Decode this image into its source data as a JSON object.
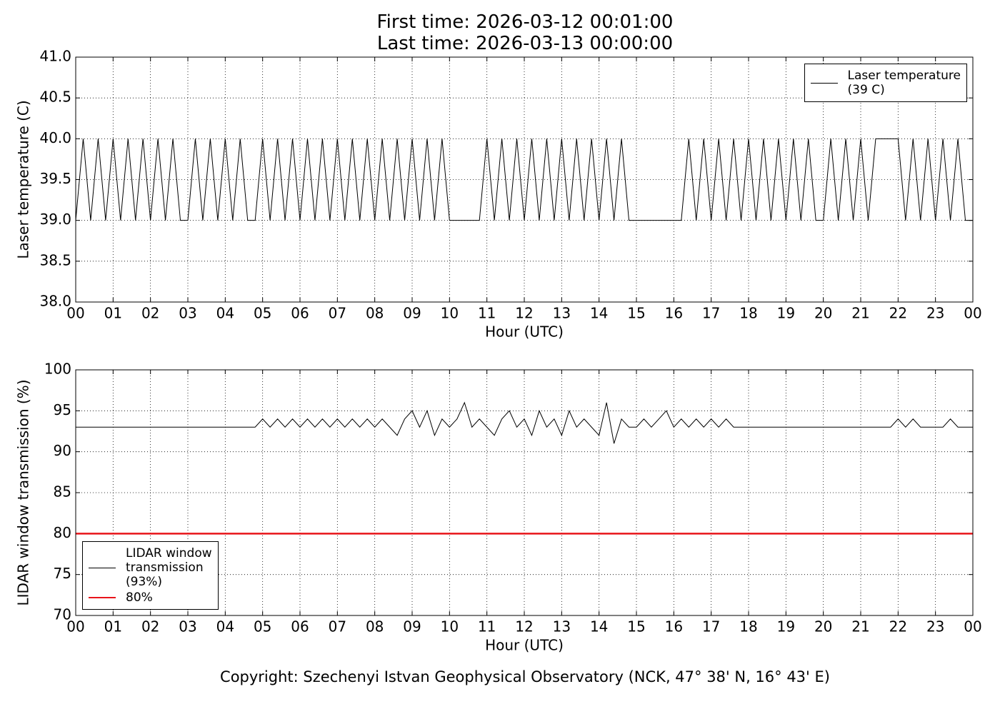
{
  "title": "First time: 2026-03-12 00:01:00\nLast time: 2026-03-13 00:00:00",
  "footnote": "Copyright: Szechenyi Istvan Geophysical Observatory (NCK, 47° 38' N, 16° 43' E)",
  "chart_data": [
    {
      "type": "line",
      "y_label": "Laser temperature (C)",
      "x_label": "Hour (UTC)",
      "legend": "upper right",
      "grid": true,
      "xlim": [
        0,
        24
      ],
      "ylim": [
        38,
        41
      ],
      "xticks": [
        {
          "value": 0,
          "label": "00"
        },
        {
          "value": 1,
          "label": "01"
        },
        {
          "value": 2,
          "label": "02"
        },
        {
          "value": 3,
          "label": "03"
        },
        {
          "value": 4,
          "label": "04"
        },
        {
          "value": 5,
          "label": "05"
        },
        {
          "value": 6,
          "label": "06"
        },
        {
          "value": 7,
          "label": "07"
        },
        {
          "value": 8,
          "label": "08"
        },
        {
          "value": 9,
          "label": "09"
        },
        {
          "value": 10,
          "label": "10"
        },
        {
          "value": 11,
          "label": "11"
        },
        {
          "value": 12,
          "label": "12"
        },
        {
          "value": 13,
          "label": "13"
        },
        {
          "value": 14,
          "label": "14"
        },
        {
          "value": 15,
          "label": "15"
        },
        {
          "value": 16,
          "label": "16"
        },
        {
          "value": 17,
          "label": "17"
        },
        {
          "value": 18,
          "label": "18"
        },
        {
          "value": 19,
          "label": "19"
        },
        {
          "value": 20,
          "label": "20"
        },
        {
          "value": 21,
          "label": "21"
        },
        {
          "value": 22,
          "label": "22"
        },
        {
          "value": 23,
          "label": "23"
        },
        {
          "value": 24,
          "label": "00"
        }
      ],
      "yticks": [
        {
          "value": 38,
          "label": "38.0"
        },
        {
          "value": 38.5,
          "label": "38.5"
        },
        {
          "value": 39,
          "label": "39.0"
        },
        {
          "value": 39.5,
          "label": "39.5"
        },
        {
          "value": 40,
          "label": "40.0"
        },
        {
          "value": 40.5,
          "label": "40.5"
        },
        {
          "value": 41,
          "label": "41.0"
        }
      ],
      "series": [
        {
          "name": "Laser temperature\n(39 C)",
          "color": "#000000",
          "width": 1,
          "x": [
            0,
            0.2,
            0.4,
            0.6,
            0.8,
            1,
            1.2,
            1.4,
            1.6,
            1.8,
            2,
            2.2,
            2.4,
            2.6,
            2.8,
            3,
            3.2,
            3.4,
            3.6,
            3.8,
            4,
            4.2,
            4.4,
            4.6,
            4.8,
            5,
            5.2,
            5.4,
            5.6,
            5.8,
            6,
            6.2,
            6.4,
            6.6,
            6.8,
            7,
            7.2,
            7.4,
            7.6,
            7.8,
            8,
            8.2,
            8.4,
            8.6,
            8.8,
            9,
            9.2,
            9.4,
            9.6,
            9.8,
            10,
            10.2,
            10.4,
            10.6,
            10.8,
            11,
            11.2,
            11.4,
            11.6,
            11.8,
            12,
            12.2,
            12.4,
            12.6,
            12.8,
            13,
            13.2,
            13.4,
            13.6,
            13.8,
            14,
            14.2,
            14.4,
            14.6,
            14.8,
            15,
            15.2,
            15.4,
            15.6,
            15.8,
            16,
            16.2,
            16.4,
            16.6,
            16.8,
            17,
            17.2,
            17.4,
            17.6,
            17.8,
            18,
            18.2,
            18.4,
            18.6,
            18.8,
            19,
            19.2,
            19.4,
            19.6,
            19.8,
            20,
            20.2,
            20.4,
            20.6,
            20.8,
            21,
            21.2,
            21.4,
            21.6,
            21.8,
            22,
            22.2,
            22.4,
            22.6,
            22.8,
            23,
            23.2,
            23.4,
            23.6,
            23.8,
            24
          ],
          "values": [
            39,
            40,
            39,
            40,
            39,
            40,
            39,
            40,
            39,
            40,
            39,
            40,
            39,
            40,
            39,
            39,
            40,
            39,
            40,
            39,
            40,
            39,
            40,
            39,
            39,
            40,
            39,
            40,
            39,
            40,
            39,
            40,
            39,
            40,
            39,
            40,
            39,
            40,
            39,
            40,
            39,
            40,
            39,
            40,
            39,
            40,
            39,
            40,
            39,
            40,
            39,
            39,
            39,
            39,
            39,
            40,
            39,
            40,
            39,
            40,
            39,
            40,
            39,
            40,
            39,
            40,
            39,
            40,
            39,
            40,
            39,
            40,
            39,
            40,
            39,
            39,
            39,
            39,
            39,
            39,
            39,
            39,
            40,
            39,
            40,
            39,
            40,
            39,
            40,
            39,
            40,
            39,
            40,
            39,
            40,
            39,
            40,
            39,
            40,
            39,
            39,
            40,
            39,
            40,
            39,
            40,
            39,
            40,
            40,
            40,
            40,
            39,
            40,
            39,
            40,
            39,
            40,
            39,
            40,
            39,
            39
          ]
        }
      ]
    },
    {
      "type": "line",
      "y_label": "LIDAR window transmission (%)",
      "x_label": "Hour (UTC)",
      "legend": "lower left",
      "grid": true,
      "xlim": [
        0,
        24
      ],
      "ylim": [
        70,
        100
      ],
      "xticks": [
        {
          "value": 0,
          "label": "00"
        },
        {
          "value": 1,
          "label": "01"
        },
        {
          "value": 2,
          "label": "02"
        },
        {
          "value": 3,
          "label": "03"
        },
        {
          "value": 4,
          "label": "04"
        },
        {
          "value": 5,
          "label": "05"
        },
        {
          "value": 6,
          "label": "06"
        },
        {
          "value": 7,
          "label": "07"
        },
        {
          "value": 8,
          "label": "08"
        },
        {
          "value": 9,
          "label": "09"
        },
        {
          "value": 10,
          "label": "10"
        },
        {
          "value": 11,
          "label": "11"
        },
        {
          "value": 12,
          "label": "12"
        },
        {
          "value": 13,
          "label": "13"
        },
        {
          "value": 14,
          "label": "14"
        },
        {
          "value": 15,
          "label": "15"
        },
        {
          "value": 16,
          "label": "16"
        },
        {
          "value": 17,
          "label": "17"
        },
        {
          "value": 18,
          "label": "18"
        },
        {
          "value": 19,
          "label": "19"
        },
        {
          "value": 20,
          "label": "20"
        },
        {
          "value": 21,
          "label": "21"
        },
        {
          "value": 22,
          "label": "22"
        },
        {
          "value": 23,
          "label": "23"
        },
        {
          "value": 24,
          "label": "00"
        }
      ],
      "yticks": [
        70,
        75,
        80,
        85,
        90,
        95,
        100
      ],
      "series": [
        {
          "name": "LIDAR window\ntransmission\n(93%)",
          "color": "#000000",
          "width": 1,
          "x": [
            0,
            0.2,
            0.4,
            0.6,
            0.8,
            1,
            1.2,
            1.4,
            1.6,
            1.8,
            2,
            2.2,
            2.4,
            2.6,
            2.8,
            3,
            3.2,
            3.4,
            3.6,
            3.8,
            4,
            4.2,
            4.4,
            4.6,
            4.8,
            5,
            5.2,
            5.4,
            5.6,
            5.8,
            6,
            6.2,
            6.4,
            6.6,
            6.8,
            7,
            7.2,
            7.4,
            7.6,
            7.8,
            8,
            8.2,
            8.4,
            8.6,
            8.8,
            9,
            9.2,
            9.4,
            9.6,
            9.8,
            10,
            10.2,
            10.4,
            10.6,
            10.8,
            11,
            11.2,
            11.4,
            11.6,
            11.8,
            12,
            12.2,
            12.4,
            12.6,
            12.8,
            13,
            13.2,
            13.4,
            13.6,
            13.8,
            14,
            14.2,
            14.4,
            14.6,
            14.8,
            15,
            15.2,
            15.4,
            15.6,
            15.8,
            16,
            16.2,
            16.4,
            16.6,
            16.8,
            17,
            17.2,
            17.4,
            17.6,
            17.8,
            18,
            18.2,
            18.4,
            18.6,
            18.8,
            19,
            19.2,
            19.4,
            19.6,
            19.8,
            20,
            20.2,
            20.4,
            20.6,
            20.8,
            21,
            21.2,
            21.4,
            21.6,
            21.8,
            22,
            22.2,
            22.4,
            22.6,
            22.8,
            23,
            23.2,
            23.4,
            23.6,
            23.8,
            24
          ],
          "values": [
            93,
            93,
            93,
            93,
            93,
            93,
            93,
            93,
            93,
            93,
            93,
            93,
            93,
            93,
            93,
            93,
            93,
            93,
            93,
            93,
            93,
            93,
            93,
            93,
            93,
            94,
            93,
            94,
            93,
            94,
            93,
            94,
            93,
            94,
            93,
            94,
            93,
            94,
            93,
            94,
            93,
            94,
            93,
            92,
            94,
            95,
            93,
            95,
            92,
            94,
            93,
            94,
            96,
            93,
            94,
            93,
            92,
            94,
            95,
            93,
            94,
            92,
            95,
            93,
            94,
            92,
            95,
            93,
            94,
            93,
            92,
            96,
            91,
            94,
            93,
            93,
            94,
            93,
            94,
            95,
            93,
            94,
            93,
            94,
            93,
            94,
            93,
            94,
            93,
            93,
            93,
            93,
            93,
            93,
            93,
            93,
            93,
            93,
            93,
            93,
            93,
            93,
            93,
            93,
            93,
            93,
            93,
            93,
            93,
            93,
            94,
            93,
            94,
            93,
            93,
            93,
            93,
            94,
            93,
            93,
            93
          ]
        },
        {
          "name": "80%",
          "color": "#e8141a",
          "width": 2.5,
          "x": [
            0,
            24
          ],
          "values": [
            80,
            80
          ]
        }
      ]
    }
  ]
}
